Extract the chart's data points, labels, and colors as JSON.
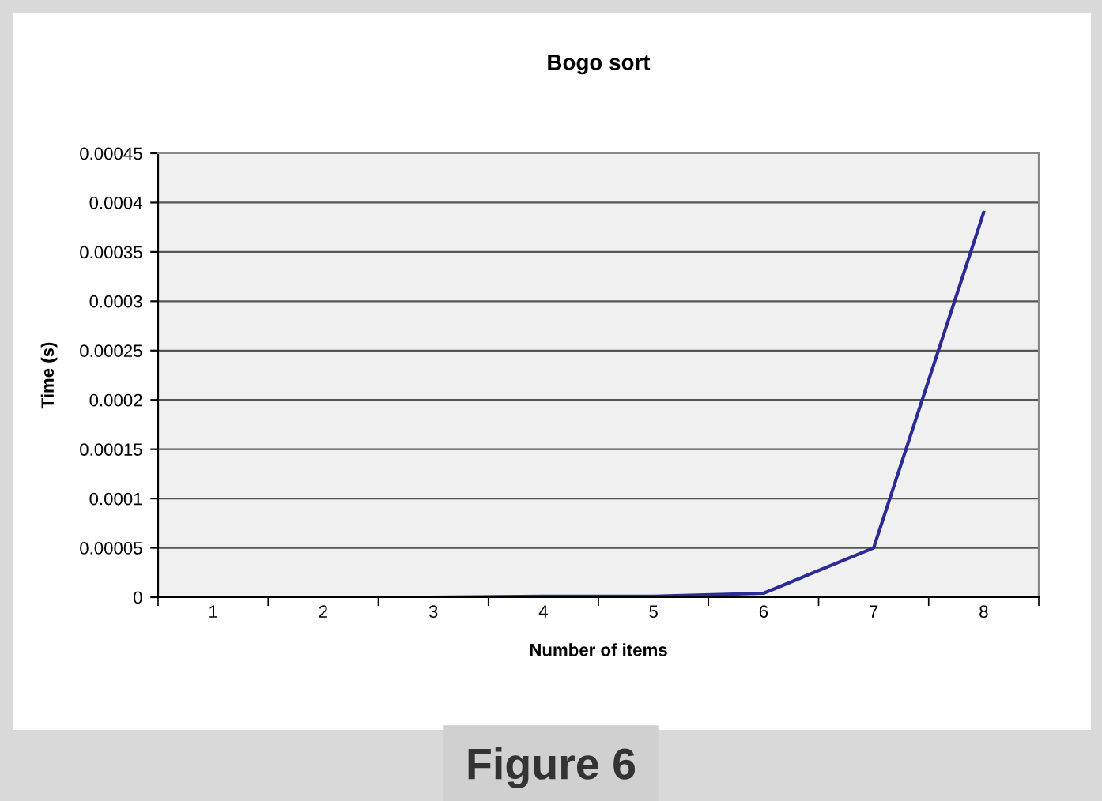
{
  "chart_data": {
    "type": "line",
    "title": "Bogo sort",
    "xlabel": "Number of items",
    "ylabel": "Time (s)",
    "categories": [
      "1",
      "2",
      "3",
      "4",
      "5",
      "6",
      "7",
      "8"
    ],
    "series": [
      {
        "color": "#2b2b94",
        "values": [
          0,
          0,
          0,
          1e-06,
          1e-06,
          4e-06,
          5e-05,
          0.00039
        ]
      }
    ],
    "ylim": [
      0,
      0.00045
    ],
    "yticks": [
      0,
      {
        "value": 5e-05,
        "label": "0.00005"
      },
      {
        "value": 0.0001,
        "label": "0.0001"
      },
      {
        "value": 0.00015,
        "label": "0.00015"
      },
      {
        "value": 0.0002,
        "label": "0.0002"
      },
      {
        "value": 0.00025,
        "label": "0.00025"
      },
      {
        "value": 0.0003,
        "label": "0.0003"
      },
      {
        "value": 0.00035,
        "label": "0.00035"
      },
      {
        "value": 0.0004,
        "label": "0.0004"
      },
      {
        "value": 0.00045,
        "label": "0.00045"
      }
    ],
    "grid": "y",
    "marker": "none",
    "line_style": "solid",
    "annotations": [
      "Figure 6"
    ]
  }
}
